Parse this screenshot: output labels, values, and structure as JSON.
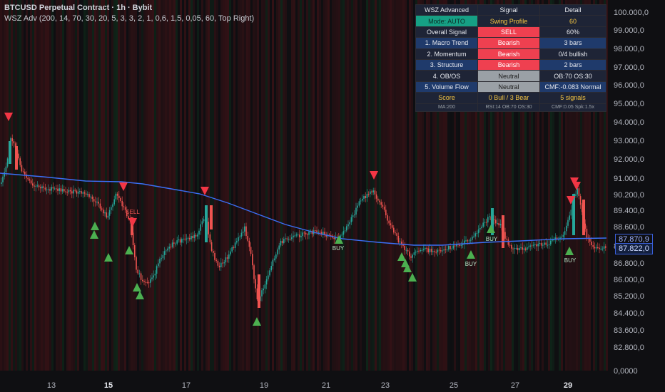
{
  "header": {
    "symbol_line": "BTCUSD Perpetual Contract · 1h · Bybit",
    "indicator_line": "WSZ Adv (200, 14, 70, 30, 20, 5, 3, 3, 2, 1, 0,6, 1,5, 0,05, 60, Top Right)"
  },
  "price_axis": [
    "100.000,0",
    "99.000,0",
    "98.000,0",
    "97.000,0",
    "96.000,0",
    "95.000,0",
    "94.000,0",
    "93.000,0",
    "92.000,0",
    "91.000,0",
    "90.200,0",
    "89.400,0",
    "88.600,0",
    "87.800,0",
    "86.800,0",
    "86.000,0",
    "85.200,0",
    "84.400,0",
    "83.600,0",
    "82.800,0",
    "0,0000"
  ],
  "price_badges": {
    "ma": "87.870,9",
    "last": "87.822,0"
  },
  "date_axis": [
    {
      "label": "13",
      "bold": false
    },
    {
      "label": "15",
      "bold": true
    },
    {
      "label": "17",
      "bold": false
    },
    {
      "label": "19",
      "bold": false
    },
    {
      "label": "21",
      "bold": false
    },
    {
      "label": "23",
      "bold": false
    },
    {
      "label": "25",
      "bold": false
    },
    {
      "label": "27",
      "bold": false
    },
    {
      "label": "29",
      "bold": true
    }
  ],
  "signal_labels": [
    {
      "text": "SELL",
      "type": "sell"
    },
    {
      "text": "BUY",
      "type": "buy"
    },
    {
      "text": "BUY",
      "type": "buy"
    },
    {
      "text": "BUY",
      "type": "buy"
    },
    {
      "text": "BUY",
      "type": "buy"
    }
  ],
  "wsz_table": {
    "header": [
      "WSZ Advanced",
      "Signal",
      "Detail"
    ],
    "rows": [
      {
        "c0": "Mode: AUTO",
        "c1": "Swing Profile",
        "c2": "60",
        "c0bg": "#16a085",
        "c0fg": "#0b2b26",
        "c1bg": "#1e2436",
        "c1fg": "#f4c542",
        "c2bg": "#1e2436",
        "c2fg": "#f4c542"
      },
      {
        "c0": "Overall Signal",
        "c1": "SELL",
        "c2": "60%",
        "c0bg": "#1e2436",
        "c0fg": "#e6e8ee",
        "c1bg": "#ef4050",
        "c1fg": "#ffffff",
        "c2bg": "#1e2436",
        "c2fg": "#e6e8ee"
      },
      {
        "c0": "1. Macro Trend",
        "c1": "Bearish",
        "c2": "3 bars",
        "c0bg": "#1f3a6b",
        "c0fg": "#e6e8ee",
        "c1bg": "#ef4050",
        "c1fg": "#ffffff",
        "c2bg": "#1f3a6b",
        "c2fg": "#e6e8ee"
      },
      {
        "c0": "2. Momentum",
        "c1": "Bearish",
        "c2": "0/4 bullish",
        "c0bg": "#1e2436",
        "c0fg": "#e6e8ee",
        "c1bg": "#ef4050",
        "c1fg": "#ffffff",
        "c2bg": "#1e2436",
        "c2fg": "#e6e8ee"
      },
      {
        "c0": "3. Structure",
        "c1": "Bearish",
        "c2": "2 bars",
        "c0bg": "#1f3a6b",
        "c0fg": "#e6e8ee",
        "c1bg": "#ef4050",
        "c1fg": "#ffffff",
        "c2bg": "#1f3a6b",
        "c2fg": "#e6e8ee"
      },
      {
        "c0": "4. OB/OS",
        "c1": "Neutral",
        "c2": "OB:70 OS:30",
        "c0bg": "#1e2436",
        "c0fg": "#e6e8ee",
        "c1bg": "#9aa0a6",
        "c1fg": "#1b1b1b",
        "c2bg": "#1e2436",
        "c2fg": "#e6e8ee"
      },
      {
        "c0": "5. Volume Flow",
        "c1": "Neutral",
        "c2": "CMF:-0.083 Normal",
        "c0bg": "#1f3a6b",
        "c0fg": "#e6e8ee",
        "c1bg": "#9aa0a6",
        "c1fg": "#1b1b1b",
        "c2bg": "#1f3a6b",
        "c2fg": "#e6e8ee"
      },
      {
        "c0": "Score",
        "c1": "0 Bull / 3 Bear",
        "c2": "5 signals",
        "c0bg": "#1e2436",
        "c0fg": "#f4c542",
        "c1bg": "#1e2436",
        "c1fg": "#f4c542",
        "c2bg": "#1e2436",
        "c2fg": "#f4c542"
      },
      {
        "c0": "MA:200",
        "c1": "RSI:14 OB:70 OS:30",
        "c2": "CMF:0.05 Spk:1.5x",
        "c0bg": "#1e2436",
        "c0fg": "#9aa0a6",
        "c1bg": "#1e2436",
        "c1fg": "#9aa0a6",
        "c2bg": "#1e2436",
        "c2fg": "#9aa0a6",
        "small": true
      }
    ]
  },
  "colors": {
    "up": "#26a69a",
    "down": "#ef5350",
    "ma": "#3b6ff5",
    "buy_arrow": "#4caf50",
    "sell_arrow": "#f23645",
    "bg": "#0f0f12",
    "tint_red": "#3a1216",
    "tint_green": "#0f2a1a"
  },
  "icons": [
    "buy-arrow-icon",
    "sell-arrow-icon"
  ]
}
